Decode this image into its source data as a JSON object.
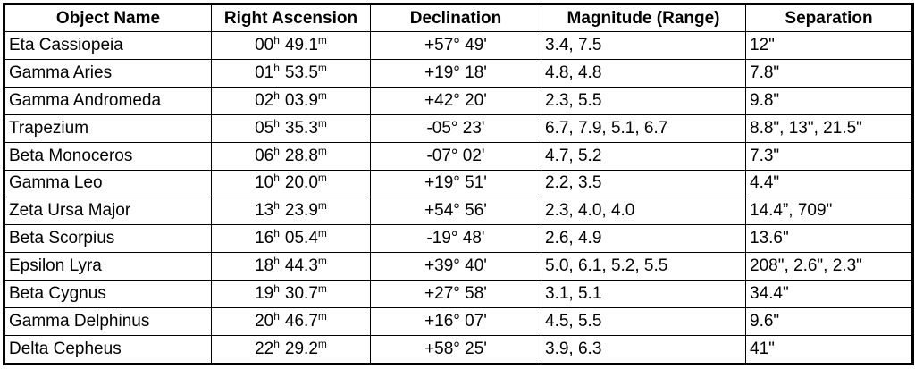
{
  "table": {
    "header": [
      "Object Name",
      "Right Ascension",
      "Declination",
      "Magnitude (Range)",
      "Separation"
    ],
    "rows": [
      {
        "name": "Eta Cassiopeia",
        "ra": [
          "00",
          "h",
          "49.1",
          "m"
        ],
        "dec": "+57° 49'",
        "mag": "3.4, 7.5",
        "sep": "12\""
      },
      {
        "name": "Gamma Aries",
        "ra": [
          "01",
          "h",
          "53.5",
          "m"
        ],
        "dec": "+19° 18'",
        "mag": "4.8, 4.8",
        "sep": "7.8\""
      },
      {
        "name": "Gamma Andromeda",
        "ra": [
          "02",
          "h",
          "03.9",
          "m"
        ],
        "dec": "+42° 20'",
        "mag": "2.3, 5.5",
        "sep": "9.8\""
      },
      {
        "name": "Trapezium",
        "ra": [
          "05",
          "h",
          "35.3",
          "m"
        ],
        "dec": "-05° 23'",
        "mag": "6.7, 7.9, 5.1, 6.7",
        "sep": "8.8\", 13\", 21.5\""
      },
      {
        "name": "Beta Monoceros",
        "ra": [
          "06",
          "h",
          "28.8",
          "m"
        ],
        "dec": "-07° 02'",
        "mag": "4.7, 5.2",
        "sep": "7.3\""
      },
      {
        "name": "Gamma Leo",
        "ra": [
          "10",
          "h",
          "20.0",
          "m"
        ],
        "dec": "+19° 51'",
        "mag": "2.2, 3.5",
        "sep": "4.4\""
      },
      {
        "name": "Zeta Ursa Major",
        "ra": [
          "13",
          "h",
          "23.9",
          "m"
        ],
        "dec": "+54° 56'",
        "mag": "2.3, 4.0, 4.0",
        "sep": "14.4”, 709\""
      },
      {
        "name": "Beta Scorpius",
        "ra": [
          "16",
          "h",
          "05.4",
          "m"
        ],
        "dec": "-19° 48'",
        "mag": "2.6, 4.9",
        "sep": "13.6\""
      },
      {
        "name": "Epsilon Lyra",
        "ra": [
          "18",
          "h",
          "44.3",
          "m"
        ],
        "dec": "+39° 40'",
        "mag": "5.0, 6.1, 5.2, 5.5",
        "sep": "208\", 2.6\", 2.3\""
      },
      {
        "name": "Beta Cygnus",
        "ra": [
          "19",
          "h",
          "30.7",
          "m"
        ],
        "dec": "+27° 58'",
        "mag": "3.1, 5.1",
        "sep": "34.4\""
      },
      {
        "name": "Gamma Delphinus",
        "ra": [
          "20",
          "h",
          "46.7",
          "m"
        ],
        "dec": "+16° 07'",
        "mag": "4.5, 5.5",
        "sep": "9.6\""
      },
      {
        "name": "Delta Cepheus",
        "ra": [
          "22",
          "h",
          "29.2",
          "m"
        ],
        "dec": "+58° 25'",
        "mag": "3.9, 6.3",
        "sep": "41\""
      }
    ]
  }
}
